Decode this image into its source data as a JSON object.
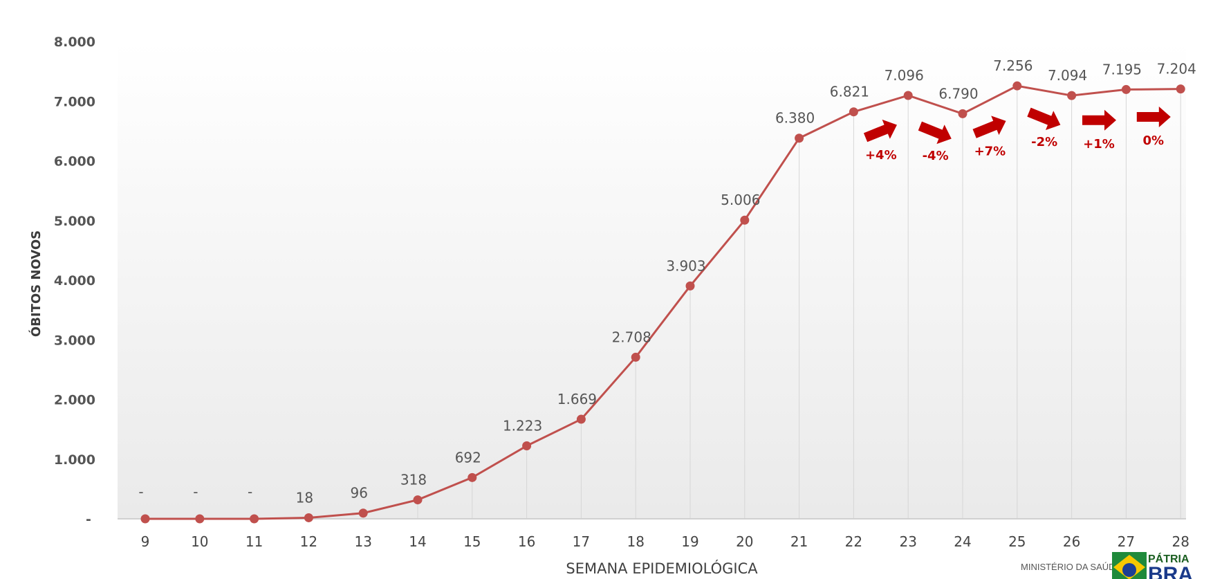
{
  "chart_data": {
    "type": "line",
    "title": "",
    "xlabel": "SEMANA EPIDEMIOLÓGICA",
    "ylabel": "ÓBITOS NOVOS",
    "ylim": [
      0,
      8000
    ],
    "yticks": [
      "-",
      "1.000",
      "2.000",
      "3.000",
      "4.000",
      "5.000",
      "6.000",
      "7.000",
      "8.000"
    ],
    "grid": "vertical",
    "legend": "none",
    "categories": [
      "9",
      "10",
      "11",
      "12",
      "13",
      "14",
      "15",
      "16",
      "17",
      "18",
      "19",
      "20",
      "21",
      "22",
      "23",
      "24",
      "25",
      "26",
      "27",
      "28"
    ],
    "series": [
      {
        "values": [
          0,
          0,
          0,
          18,
          96,
          318,
          692,
          1223,
          1669,
          2708,
          3903,
          5006,
          6380,
          6821,
          7096,
          6790,
          7256,
          7094,
          7195,
          7204
        ],
        "labels": [
          "-",
          "-",
          "-",
          "18",
          "96",
          "318",
          "692",
          "1.223",
          "1.669",
          "2.708",
          "3.903",
          "5.006",
          "6.380",
          "6.821",
          "7.096",
          "6.790",
          "7.256",
          "7.094",
          "7.195",
          "7.204"
        ],
        "color": "#c0504d"
      }
    ],
    "annotations": [
      {
        "from": "22",
        "to": "23",
        "text": "+4%",
        "direction": "up"
      },
      {
        "from": "23",
        "to": "24",
        "text": "-4%",
        "direction": "down"
      },
      {
        "from": "24",
        "to": "25",
        "text": "+7%",
        "direction": "up"
      },
      {
        "from": "25",
        "to": "26",
        "text": "-2%",
        "direction": "down"
      },
      {
        "from": "26",
        "to": "27",
        "text": "+1%",
        "direction": "flat"
      },
      {
        "from": "27",
        "to": "28",
        "text": "0%",
        "direction": "flat"
      }
    ],
    "arrow_color": "#c00000"
  },
  "footer": {
    "ministry": "MINISTÉRIO DA SAÚDE",
    "logo_word_1": "PÁTRIA",
    "logo_word_2": "BRA"
  }
}
